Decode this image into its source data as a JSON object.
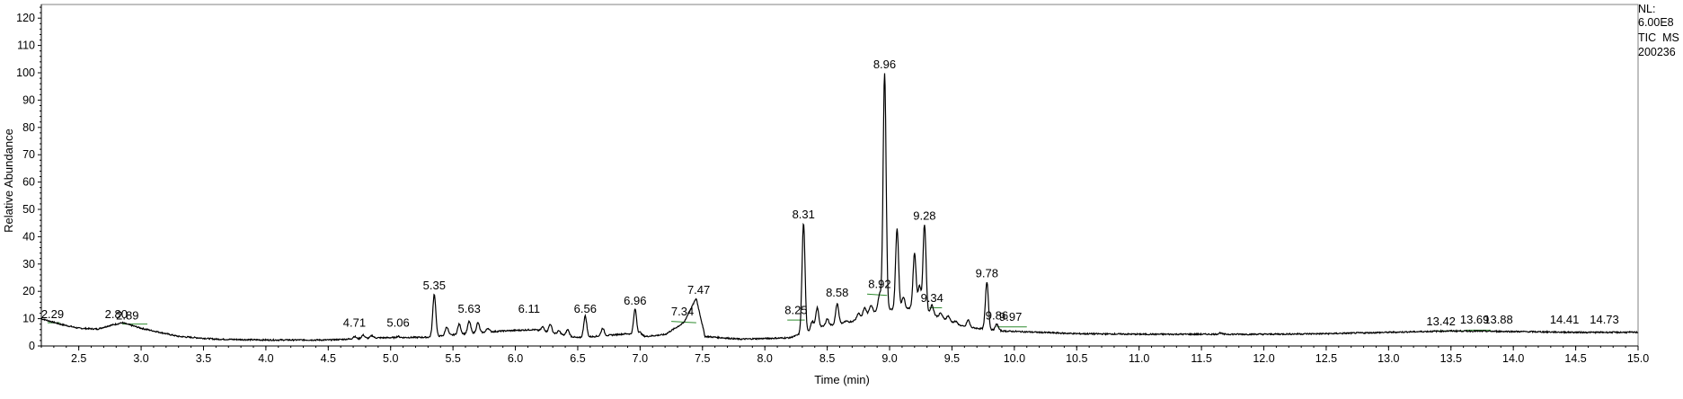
{
  "chart_data": {
    "type": "line",
    "xlabel": "Time (min)",
    "ylabel": "Relative Abundance",
    "xlim": [
      2.2,
      15.0
    ],
    "ylim": [
      0,
      125
    ],
    "x_ticks": [
      "2.5",
      "3.0",
      "3.5",
      "4.0",
      "4.5",
      "5.0",
      "5.5",
      "6.0",
      "6.5",
      "7.0",
      "7.5",
      "8.0",
      "8.5",
      "9.0",
      "9.5",
      "10.0",
      "10.5",
      "11.0",
      "11.5",
      "12.0",
      "12.5",
      "13.0",
      "13.5",
      "14.0",
      "14.5",
      "15.0"
    ],
    "y_ticks": [
      "0",
      "10",
      "20",
      "30",
      "40",
      "50",
      "60",
      "70",
      "80",
      "90",
      "100",
      "110",
      "120"
    ],
    "info_lines": [
      "NL:",
      "6.00E8",
      "TIC  MS",
      "200236"
    ],
    "baseline": [
      [
        2.2,
        10
      ],
      [
        2.35,
        8
      ],
      [
        2.5,
        6.5
      ],
      [
        2.65,
        6.2
      ],
      [
        2.75,
        7.5
      ],
      [
        2.85,
        8.5
      ],
      [
        3.0,
        6.5
      ],
      [
        3.3,
        3.5
      ],
      [
        3.6,
        2.5
      ],
      [
        4.0,
        2.2
      ],
      [
        4.5,
        2.2
      ],
      [
        4.9,
        3.0
      ],
      [
        5.3,
        3.2
      ],
      [
        5.6,
        4.5
      ],
      [
        5.9,
        5.5
      ],
      [
        6.15,
        6.0
      ],
      [
        6.5,
        3.0
      ],
      [
        6.9,
        4.5
      ],
      [
        7.05,
        3.5
      ],
      [
        7.2,
        4.2
      ],
      [
        7.35,
        8.5
      ],
      [
        7.45,
        17.5
      ],
      [
        7.52,
        3.5
      ],
      [
        7.8,
        2.5
      ],
      [
        8.2,
        3.0
      ],
      [
        8.45,
        7.0
      ],
      [
        8.7,
        9.0
      ],
      [
        8.9,
        13.0
      ],
      [
        9.2,
        14.0
      ],
      [
        9.4,
        10.5
      ],
      [
        9.6,
        7.0
      ],
      [
        9.9,
        5.5
      ],
      [
        10.5,
        4.5
      ],
      [
        11.0,
        4.3
      ],
      [
        12.0,
        4.3
      ],
      [
        12.5,
        4.5
      ],
      [
        13.0,
        5.0
      ],
      [
        13.5,
        5.5
      ],
      [
        14.0,
        5.3
      ],
      [
        14.5,
        5.0
      ],
      [
        15.0,
        5.0
      ]
    ],
    "peaks": [
      {
        "label": "2.29",
        "x": 2.29,
        "y": 8.5,
        "apex": 0
      },
      {
        "label": "2.80",
        "x": 2.8,
        "y": 8.5,
        "apex": 1.5
      },
      {
        "label": "2.89",
        "x": 2.89,
        "y": 8.0,
        "apex": 0
      },
      {
        "label": "4.71",
        "x": 4.71,
        "y": 5.5,
        "apex": 3.5
      },
      {
        "label": "5.06",
        "x": 5.06,
        "y": 5.5,
        "apex": 3.5
      },
      {
        "label": "5.35",
        "x": 5.35,
        "y": 19.0,
        "apex": 19
      },
      {
        "label": "5.63",
        "x": 5.63,
        "y": 10.5,
        "apex": 9
      },
      {
        "label": "6.11",
        "x": 6.11,
        "y": 10.5,
        "apex": 4.5
      },
      {
        "label": "6.56",
        "x": 6.56,
        "y": 10.5,
        "apex": 11
      },
      {
        "label": "6.96",
        "x": 6.96,
        "y": 13.5,
        "apex": 13.5
      },
      {
        "label": "7.34",
        "x": 7.34,
        "y": 9.5,
        "apex": 0
      },
      {
        "label": "7.47",
        "x": 7.47,
        "y": 17.5,
        "apex": 0
      },
      {
        "label": "8.25",
        "x": 8.25,
        "y": 10.0,
        "apex": 0
      },
      {
        "label": "8.31",
        "x": 8.31,
        "y": 45.0,
        "apex": 45
      },
      {
        "label": "8.58",
        "x": 8.58,
        "y": 16.5,
        "apex": 15.5
      },
      {
        "label": "8.92",
        "x": 8.92,
        "y": 19.5,
        "apex": 19
      },
      {
        "label": "8.96",
        "x": 8.96,
        "y": 100.0,
        "apex": 100
      },
      {
        "label": "9.28",
        "x": 9.28,
        "y": 44.5,
        "apex": 44.5
      },
      {
        "label": "9.34",
        "x": 9.34,
        "y": 14.5,
        "apex": 15
      },
      {
        "label": "9.78",
        "x": 9.78,
        "y": 23.5,
        "apex": 23.5
      },
      {
        "label": "9.86",
        "x": 9.86,
        "y": 8.0,
        "apex": 8
      },
      {
        "label": "9.97",
        "x": 9.97,
        "y": 7.5,
        "apex": 0
      },
      {
        "label": "13.42",
        "x": 13.42,
        "y": 6.0,
        "apex": 0
      },
      {
        "label": "13.69",
        "x": 13.69,
        "y": 6.5,
        "apex": 0
      },
      {
        "label": "13.88",
        "x": 13.88,
        "y": 6.5,
        "apex": 0
      },
      {
        "label": "14.41",
        "x": 14.41,
        "y": 6.5,
        "apex": 0
      },
      {
        "label": "14.73",
        "x": 14.73,
        "y": 6.5,
        "apex": 0
      }
    ],
    "extra_peaks": [
      [
        4.78,
        4
      ],
      [
        4.85,
        3.8
      ],
      [
        5.45,
        7
      ],
      [
        5.55,
        8
      ],
      [
        5.7,
        8.5
      ],
      [
        5.78,
        6.5
      ],
      [
        5.95,
        5
      ],
      [
        6.22,
        7
      ],
      [
        6.28,
        8
      ],
      [
        6.35,
        5.5
      ],
      [
        6.42,
        6
      ],
      [
        6.7,
        6.5
      ],
      [
        7.0,
        5
      ],
      [
        8.38,
        9
      ],
      [
        8.42,
        14
      ],
      [
        8.5,
        10
      ],
      [
        8.65,
        9
      ],
      [
        8.75,
        12
      ],
      [
        8.8,
        14
      ],
      [
        8.85,
        15
      ],
      [
        9.06,
        43
      ],
      [
        9.11,
        18
      ],
      [
        9.2,
        34
      ],
      [
        9.24,
        22
      ],
      [
        9.41,
        12
      ],
      [
        9.47,
        11
      ],
      [
        9.53,
        9
      ],
      [
        9.63,
        9.5
      ],
      [
        11.65,
        4.8
      ]
    ],
    "line_color": "#000000",
    "baseline_mark_color": "#2e8b2e"
  }
}
